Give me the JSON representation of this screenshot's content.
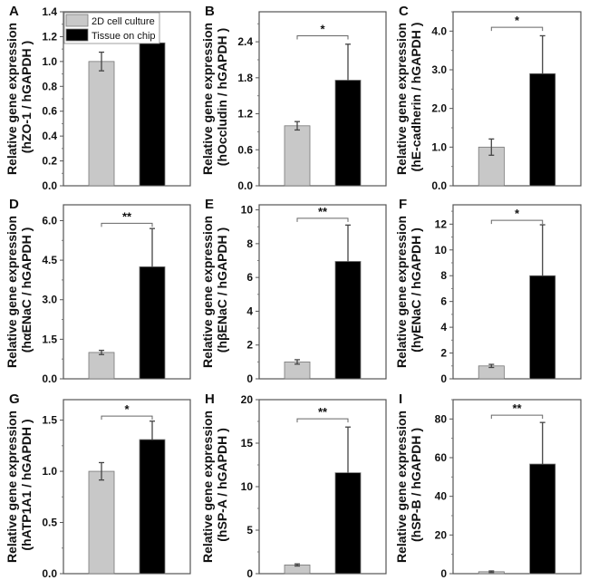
{
  "legend": {
    "items": [
      {
        "label": "2D cell culture",
        "color": "#c8c8c8"
      },
      {
        "label": "Tissue on chip",
        "color": "#000000"
      }
    ],
    "placement": "top-left of panel A"
  },
  "chart_data": [
    {
      "panel": "A",
      "type": "bar",
      "ylabel_line1": "Relative gene expression",
      "ylabel_line2": "(hZO-1 / hGAPDH )",
      "categories": [
        "2D cell culture",
        "Tissue on chip"
      ],
      "values": [
        1.0,
        1.15
      ],
      "errors": [
        0.075,
        0.14
      ],
      "ylim": [
        0,
        1.4
      ],
      "yticks": [
        "0.0",
        "0.2",
        "0.4",
        "0.6",
        "0.8",
        "1.0",
        "1.2",
        "1.4"
      ],
      "ytick_values": [
        0,
        0.2,
        0.4,
        0.6,
        0.8,
        1.0,
        1.2,
        1.4
      ],
      "significance": ""
    },
    {
      "panel": "B",
      "type": "bar",
      "ylabel_line1": "Relative gene expression",
      "ylabel_line2": "(hOccludin / hGAPDH )",
      "categories": [
        "2D cell culture",
        "Tissue on chip"
      ],
      "values": [
        1.0,
        1.76
      ],
      "errors": [
        0.07,
        0.6
      ],
      "ylim": [
        0,
        2.9
      ],
      "yticks": [
        "0.0",
        "0.6",
        "1.2",
        "1.8",
        "2.4"
      ],
      "ytick_values": [
        0,
        0.6,
        1.2,
        1.8,
        2.4
      ],
      "significance": "*",
      "sig_level": 2.5
    },
    {
      "panel": "C",
      "type": "bar",
      "ylabel_line1": "Relative gene expression",
      "ylabel_line2": "(hE-cadherin / hGAPDH )",
      "categories": [
        "2D cell culture",
        "Tissue on chip"
      ],
      "values": [
        1.0,
        2.9
      ],
      "errors": [
        0.21,
        0.98
      ],
      "ylim": [
        0,
        4.5
      ],
      "yticks": [
        "0.0",
        "1.0",
        "2.0",
        "3.0",
        "4.0"
      ],
      "ytick_values": [
        0,
        1,
        2,
        3,
        4
      ],
      "significance": "*",
      "sig_level": 4.1
    },
    {
      "panel": "D",
      "type": "bar",
      "ylabel_line1": "Relative gene expression",
      "ylabel_line2": "(hαENaC / hGAPDH )",
      "categories": [
        "2D cell culture",
        "Tissue on chip"
      ],
      "values": [
        1.0,
        4.25
      ],
      "errors": [
        0.08,
        1.45
      ],
      "ylim": [
        0,
        6.6
      ],
      "yticks": [
        "0.0",
        "1.5",
        "3.0",
        "4.5",
        "6.0"
      ],
      "ytick_values": [
        0,
        1.5,
        3,
        4.5,
        6
      ],
      "significance": "**",
      "sig_level": 5.9
    },
    {
      "panel": "E",
      "type": "bar",
      "ylabel_line1": "Relative gene expression",
      "ylabel_line2": "(hβENaC / hGAPDH )",
      "categories": [
        "2D cell culture",
        "Tissue on chip"
      ],
      "values": [
        1.0,
        6.95
      ],
      "errors": [
        0.13,
        2.15
      ],
      "ylim": [
        0,
        10.3
      ],
      "yticks": [
        "0",
        "2",
        "4",
        "6",
        "8",
        "10"
      ],
      "ytick_values": [
        0,
        2,
        4,
        6,
        8,
        10
      ],
      "significance": "**",
      "sig_level": 9.5
    },
    {
      "panel": "F",
      "type": "bar",
      "ylabel_line1": "Relative gene expression",
      "ylabel_line2": "(hγENaC / hGAPDH )",
      "categories": [
        "2D cell culture",
        "Tissue on chip"
      ],
      "values": [
        1.0,
        8.0
      ],
      "errors": [
        0.12,
        3.95
      ],
      "ylim": [
        0,
        13.5
      ],
      "yticks": [
        "0",
        "2",
        "4",
        "6",
        "8",
        "10",
        "12"
      ],
      "ytick_values": [
        0,
        2,
        4,
        6,
        8,
        10,
        12
      ],
      "significance": "*",
      "sig_level": 12.3
    },
    {
      "panel": "G",
      "type": "bar",
      "ylabel_line1": "Relative gene expression",
      "ylabel_line2": "(hATP1A1 / hGAPDH )",
      "categories": [
        "2D cell culture",
        "Tissue on chip"
      ],
      "values": [
        1.0,
        1.31
      ],
      "errors": [
        0.085,
        0.18
      ],
      "ylim": [
        0,
        1.7
      ],
      "yticks": [
        "0.0",
        "0.5",
        "1.0",
        "1.5"
      ],
      "ytick_values": [
        0,
        0.5,
        1.0,
        1.5
      ],
      "significance": "*",
      "sig_level": 1.54
    },
    {
      "panel": "H",
      "type": "bar",
      "ylabel_line1": "Relative gene expression",
      "ylabel_line2": "(hSP-A / hGAPDH )",
      "categories": [
        "2D cell culture",
        "Tissue on chip"
      ],
      "values": [
        1.0,
        11.6
      ],
      "errors": [
        0.12,
        5.25
      ],
      "ylim": [
        0,
        20
      ],
      "yticks": [
        "0",
        "5",
        "10",
        "15",
        "20"
      ],
      "ytick_values": [
        0,
        5,
        10,
        15,
        20
      ],
      "significance": "**",
      "sig_level": 17.8
    },
    {
      "panel": "I",
      "type": "bar",
      "ylabel_line1": "Relative gene expression",
      "ylabel_line2": "(hSP-B / hGAPDH )",
      "categories": [
        "2D cell culture",
        "Tissue on chip"
      ],
      "values": [
        1.0,
        56.7
      ],
      "errors": [
        0.4,
        21.5
      ],
      "ylim": [
        0,
        90
      ],
      "yticks": [
        "0",
        "20",
        "40",
        "60",
        "80"
      ],
      "ytick_values": [
        0,
        20,
        40,
        60,
        80
      ],
      "significance": "**",
      "sig_level": 82
    }
  ]
}
